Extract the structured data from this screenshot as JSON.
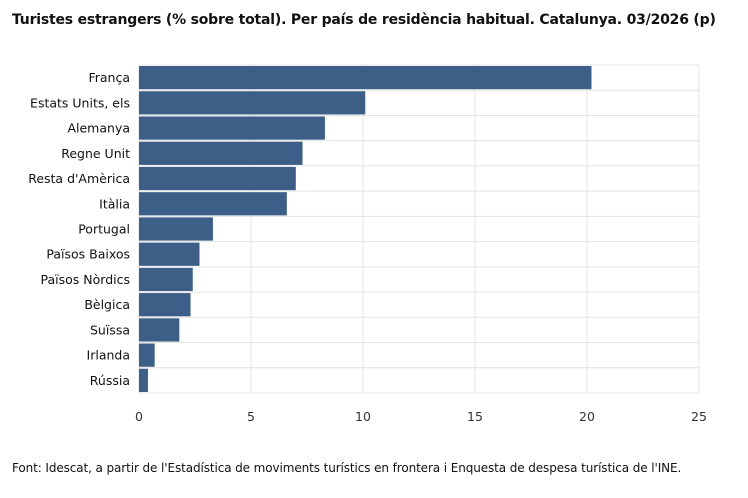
{
  "title": "Turistes estrangers (% sobre total). Per país de residència habitual. Catalunya. 03/2026 (p)",
  "footer": "Font: Idescat, a partir de l'Estadística de moviments turístics en frontera i Enquesta de despesa turística de l'INE.",
  "chart_data": {
    "type": "bar",
    "orientation": "horizontal",
    "title": "Turistes estrangers (% sobre total). Per país de residència habitual. Catalunya. 03/2026 (p)",
    "xlabel": "",
    "ylabel": "",
    "xlim": [
      0,
      25
    ],
    "xticks": [
      0,
      5,
      10,
      15,
      20,
      25
    ],
    "grid": true,
    "legend": "none",
    "bar_color": "#3d5f87",
    "categories": [
      "França",
      "Estats Units, els",
      "Alemanya",
      "Regne Unit",
      "Resta d'Amèrica",
      "Itàlia",
      "Portugal",
      "Països Baixos",
      "Països Nòrdics",
      "Bèlgica",
      "Suïssa",
      "Irlanda",
      "Rússia"
    ],
    "values": [
      20.2,
      10.1,
      8.3,
      7.3,
      7.0,
      6.6,
      3.3,
      2.7,
      2.4,
      2.3,
      1.8,
      0.7,
      0.4
    ]
  }
}
